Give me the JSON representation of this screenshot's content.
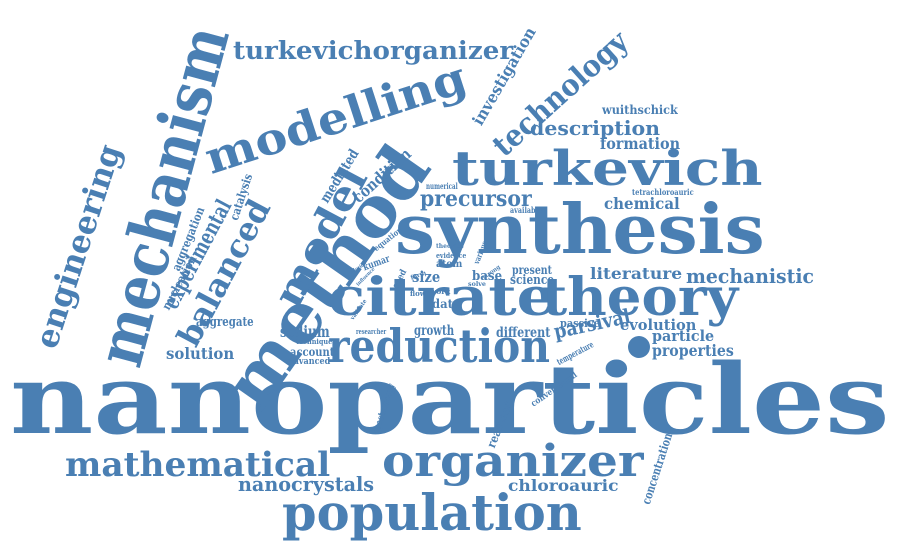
{
  "color": "#4a7fb3",
  "words": [
    "nanoparticles",
    "synthesis",
    "method",
    "citrate",
    "theory",
    "mechanism",
    "turkevich",
    "reduction",
    "modelling",
    "organizer",
    "population",
    "mathematical",
    "model",
    "technology",
    "turkevichorganizer",
    "engineering",
    "balanced",
    "experimental",
    "precursor",
    "literature",
    "mechanistic",
    "description",
    "formation",
    "chemical",
    "nanocrystals",
    "chloroauric",
    "properties",
    "particle",
    "evolution",
    "parsival",
    "investigation",
    "condition",
    "mediated",
    "solution",
    "sodium",
    "aggregate",
    "catalysis",
    "aggregation",
    "nucleation",
    "wuithschick",
    "tetrachloroauric",
    "concentration",
    "reactant",
    "spectroscopy",
    "conventional",
    "temperature",
    "passive",
    "different",
    "growth",
    "science",
    "present",
    "data",
    "size",
    "base",
    "atom",
    "account",
    "advanced",
    "technique",
    "researcher",
    "kumar",
    "seed",
    "equation",
    "numerical",
    "available",
    "work",
    "evidence",
    "various",
    "validate",
    "influence",
    "chloride",
    "flow",
    "form",
    "solve",
    "strong",
    "theories"
  ]
}
